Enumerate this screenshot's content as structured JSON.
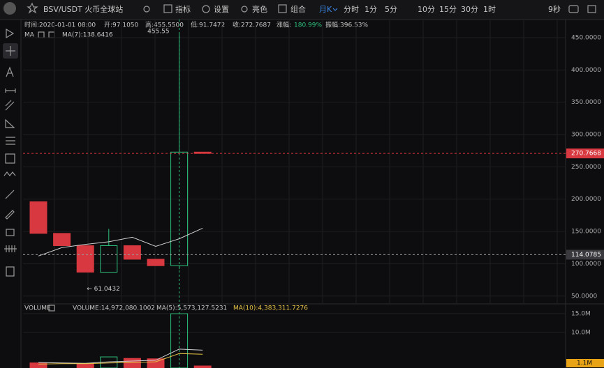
{
  "toolbar": {
    "symbol": "BSV/USDT 火币全球站",
    "menu": [
      "指标",
      "设置",
      "亮色",
      "组合"
    ],
    "period": "月K",
    "intervals": [
      "分时",
      "1分",
      "5分",
      "10分",
      "15分",
      "30分",
      "1时"
    ],
    "refresh": "9秒"
  },
  "info": {
    "time": "时间:2020-01-01 08:00",
    "open": "开:97.1050",
    "high": "高:455.5500",
    "low": "低:91.7472",
    "close": "收:272.7687",
    "change_label": "涨幅:",
    "change": "180.99%",
    "amplitude": "振幅:396.53%"
  },
  "chart_data": [
    {
      "type": "candlestick",
      "indicator": "MA",
      "up_color": "#2ec27e",
      "down_color": "#d8383f",
      "open": [
        196,
        147,
        128,
        87,
        128,
        107,
        97.105,
        272.7687
      ],
      "high": [
        214,
        160,
        139,
        154,
        141,
        114,
        455.55,
        289
      ],
      "low": [
        115,
        117,
        61.0432,
        87,
        87,
        79,
        91.7472,
        264
      ],
      "close": [
        147,
        128,
        87,
        128,
        107,
        97,
        272.7687,
        270.7668
      ],
      "high_label": "455.55",
      "low_label": "← 61.0432",
      "ma": {
        "name": "MA(7):138.6416",
        "color": "#d0d0d0",
        "values": [
          112,
          125,
          130,
          134,
          141,
          127,
          138.6416,
          155
        ]
      },
      "ylim": [
        39,
        478
      ],
      "yticks": [
        {
          "value": 50,
          "label": "50.0000"
        },
        {
          "value": 100,
          "label": "100.0000"
        },
        {
          "value": 150,
          "label": "150.0000"
        },
        {
          "value": 200,
          "label": "200.0000"
        },
        {
          "value": 250,
          "label": "250.0000"
        },
        {
          "value": 300,
          "label": "300.0000"
        },
        {
          "value": 350,
          "label": "350.0000"
        },
        {
          "value": 400,
          "label": "400.0000"
        },
        {
          "value": 450,
          "label": "450.0000"
        }
      ],
      "last_price": {
        "value": 270.7668,
        "label": "270.7668"
      },
      "crosshair": {
        "value": 114.0785,
        "label": "114.0785"
      },
      "grid": true
    },
    {
      "type": "bar",
      "title": "VOLUME",
      "series": [
        {
          "name": "VOLUME:14,972,080.1002",
          "values": [
            1900000,
            400000,
            1700000,
            3500000,
            3100000,
            3000000,
            14972080.1002,
            1100000
          ]
        },
        {
          "name": "MA(5):5,573,127.5231",
          "color": "#d0d0d0",
          "values": [
            2000000,
            1900000,
            1800000,
            2200000,
            2400000,
            2600000,
            5573127.5231,
            5300000
          ]
        },
        {
          "name": "MA(10):4,383,311.7276",
          "color": "#e8c547",
          "values": [
            1600000,
            1700000,
            1700000,
            1900000,
            2000000,
            2200000,
            4383311.7276,
            4200000
          ]
        }
      ],
      "ylim": [
        550000,
        17400000
      ],
      "yticks": [
        {
          "value": 10000000,
          "label": "10.0M"
        },
        {
          "value": 15000000,
          "label": "15.0M"
        }
      ],
      "last_volume": {
        "value": 1100000,
        "label": "1.1M"
      },
      "grid": true
    }
  ]
}
